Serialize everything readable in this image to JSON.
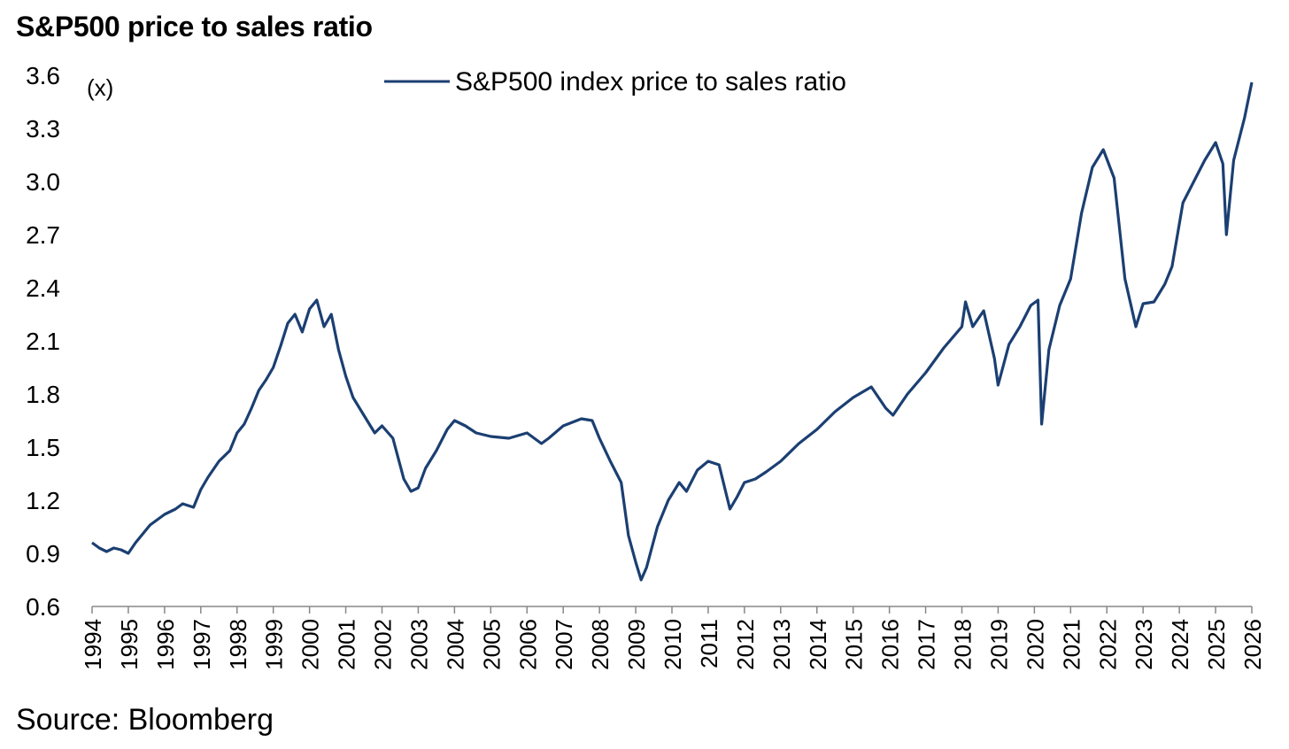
{
  "chart_data": {
    "type": "line",
    "title": "S&P500 price to sales ratio",
    "ylabel": "(x)",
    "xlabel": "",
    "source": "Source: Bloomberg",
    "ylim": [
      0.6,
      3.6
    ],
    "xlim": [
      1994,
      2026
    ],
    "yticks": [
      "0.6",
      "0.9",
      "1.2",
      "1.5",
      "1.8",
      "2.1",
      "2.4",
      "2.7",
      "3.0",
      "3.3",
      "3.6"
    ],
    "xticks": [
      "1994",
      "1995",
      "1996",
      "1997",
      "1998",
      "1999",
      "2000",
      "2001",
      "2002",
      "2003",
      "2004",
      "2005",
      "2006",
      "2007",
      "2008",
      "2009",
      "2010",
      "2011",
      "2012",
      "2013",
      "2014",
      "2015",
      "2016",
      "2017",
      "2018",
      "2019",
      "2020",
      "2021",
      "2022",
      "2023",
      "2024",
      "2025",
      "2026"
    ],
    "grid": false,
    "legend": "top-center",
    "line_color": "#1b3f72",
    "series": [
      {
        "name": "S&P500 index price to sales ratio",
        "x": [
          1994.0,
          1994.2,
          1994.4,
          1994.6,
          1994.8,
          1995.0,
          1995.2,
          1995.4,
          1995.6,
          1995.8,
          1996.0,
          1996.3,
          1996.5,
          1996.8,
          1997.0,
          1997.2,
          1997.5,
          1997.8,
          1998.0,
          1998.2,
          1998.4,
          1998.6,
          1998.8,
          1999.0,
          1999.2,
          1999.4,
          1999.6,
          1999.8,
          2000.0,
          2000.2,
          2000.4,
          2000.6,
          2000.8,
          2001.0,
          2001.2,
          2001.5,
          2001.8,
          2002.0,
          2002.3,
          2002.6,
          2002.8,
          2003.0,
          2003.2,
          2003.5,
          2003.8,
          2004.0,
          2004.3,
          2004.6,
          2005.0,
          2005.5,
          2006.0,
          2006.4,
          2006.6,
          2007.0,
          2007.5,
          2007.8,
          2008.0,
          2008.3,
          2008.6,
          2008.8,
          2009.0,
          2009.15,
          2009.3,
          2009.6,
          2009.9,
          2010.2,
          2010.4,
          2010.7,
          2011.0,
          2011.3,
          2011.6,
          2011.8,
          2012.0,
          2012.3,
          2012.6,
          2013.0,
          2013.5,
          2014.0,
          2014.5,
          2015.0,
          2015.5,
          2015.9,
          2016.1,
          2016.5,
          2017.0,
          2017.5,
          2018.0,
          2018.1,
          2018.3,
          2018.6,
          2018.9,
          2019.0,
          2019.3,
          2019.6,
          2019.9,
          2020.1,
          2020.2,
          2020.4,
          2020.7,
          2021.0,
          2021.3,
          2021.6,
          2021.9,
          2022.2,
          2022.5,
          2022.8,
          2023.0,
          2023.3,
          2023.6,
          2023.8,
          2024.1,
          2024.4,
          2024.7,
          2025.0,
          2025.2,
          2025.3,
          2025.5,
          2025.8,
          2026.0
        ],
        "values": [
          0.96,
          0.93,
          0.91,
          0.93,
          0.92,
          0.9,
          0.96,
          1.01,
          1.06,
          1.09,
          1.12,
          1.15,
          1.18,
          1.16,
          1.26,
          1.33,
          1.42,
          1.48,
          1.58,
          1.63,
          1.72,
          1.82,
          1.88,
          1.95,
          2.07,
          2.2,
          2.25,
          2.15,
          2.28,
          2.33,
          2.18,
          2.25,
          2.05,
          1.9,
          1.78,
          1.68,
          1.58,
          1.62,
          1.55,
          1.32,
          1.25,
          1.27,
          1.38,
          1.48,
          1.6,
          1.65,
          1.62,
          1.58,
          1.56,
          1.55,
          1.58,
          1.52,
          1.55,
          1.62,
          1.66,
          1.65,
          1.55,
          1.42,
          1.3,
          1.0,
          0.85,
          0.75,
          0.82,
          1.05,
          1.2,
          1.3,
          1.25,
          1.37,
          1.42,
          1.4,
          1.15,
          1.22,
          1.3,
          1.32,
          1.36,
          1.42,
          1.52,
          1.6,
          1.7,
          1.78,
          1.84,
          1.72,
          1.68,
          1.8,
          1.92,
          2.06,
          2.18,
          2.32,
          2.18,
          2.27,
          2.0,
          1.85,
          2.08,
          2.18,
          2.3,
          2.33,
          1.63,
          2.05,
          2.3,
          2.45,
          2.82,
          3.08,
          3.18,
          3.02,
          2.45,
          2.18,
          2.31,
          2.32,
          2.42,
          2.52,
          2.88,
          3.0,
          3.12,
          3.22,
          3.1,
          2.7,
          3.12,
          3.36,
          3.56
        ]
      }
    ]
  }
}
